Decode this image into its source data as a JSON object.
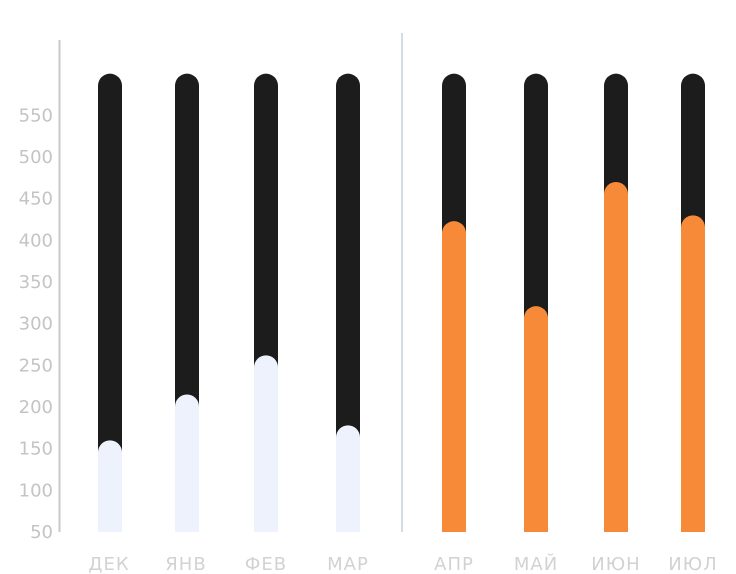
{
  "chart_data": {
    "type": "bar",
    "style": "stacked-capsule",
    "categories": [
      "ДЕК",
      "ЯНВ",
      "ФЕВ",
      "МАР",
      "АПР",
      "МАЙ",
      "ИЮН",
      "ИЮЛ"
    ],
    "values": [
      160,
      215,
      262,
      178,
      423,
      321,
      470,
      430
    ],
    "track_max": 600,
    "ylim": [
      50,
      600
    ],
    "yticks": [
      50,
      100,
      150,
      200,
      250,
      300,
      350,
      400,
      450,
      500,
      550
    ],
    "grid": false,
    "legend": "none",
    "divider_after_index": 3,
    "colors": {
      "track": "#1c1c1c",
      "past_fill": "#edf2fd",
      "future_fill": "#f78a38",
      "axis": "#c8c8c8",
      "divider": "#d3dce6",
      "tick_label": "#c4c4c4",
      "category_label": "#d2d2d2"
    }
  }
}
